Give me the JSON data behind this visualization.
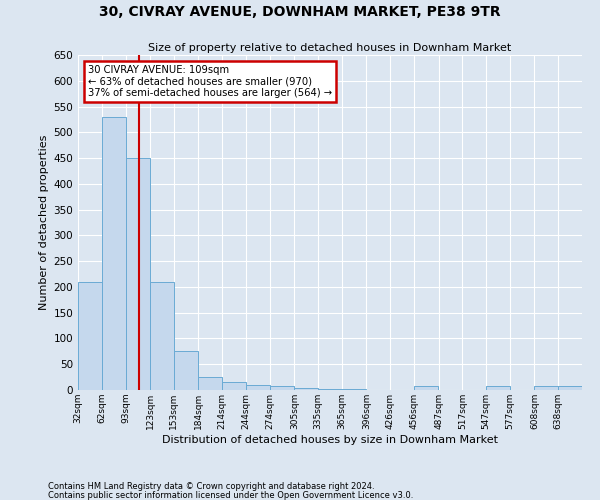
{
  "title": "30, CIVRAY AVENUE, DOWNHAM MARKET, PE38 9TR",
  "subtitle": "Size of property relative to detached houses in Downham Market",
  "xlabel": "Distribution of detached houses by size in Downham Market",
  "ylabel": "Number of detached properties",
  "footer1": "Contains HM Land Registry data © Crown copyright and database right 2024.",
  "footer2": "Contains public sector information licensed under the Open Government Licence v3.0.",
  "bin_labels": [
    "32sqm",
    "62sqm",
    "93sqm",
    "123sqm",
    "153sqm",
    "184sqm",
    "214sqm",
    "244sqm",
    "274sqm",
    "305sqm",
    "335sqm",
    "365sqm",
    "396sqm",
    "426sqm",
    "456sqm",
    "487sqm",
    "517sqm",
    "547sqm",
    "577sqm",
    "608sqm",
    "638sqm"
  ],
  "bin_starts": [
    32,
    62,
    93,
    123,
    153,
    184,
    214,
    244,
    274,
    305,
    335,
    365,
    396,
    426,
    456,
    487,
    517,
    547,
    577,
    608,
    638
  ],
  "bin_values": [
    210,
    530,
    450,
    210,
    75,
    25,
    15,
    10,
    7,
    3,
    2,
    1,
    0,
    0,
    7,
    0,
    0,
    7,
    0,
    7,
    7
  ],
  "bar_color": "#c5d8ed",
  "bar_edge_color": "#6aaad4",
  "background_color": "#dce6f1",
  "grid_color": "#ffffff",
  "property_line_x": 109,
  "annotation_text": "30 CIVRAY AVENUE: 109sqm\n← 63% of detached houses are smaller (970)\n37% of semi-detached houses are larger (564) →",
  "annotation_box_color": "#ffffff",
  "annotation_box_edge_color": "#cc0000",
  "red_line_color": "#cc0000",
  "ylim": [
    0,
    650
  ],
  "bin_width": 30
}
